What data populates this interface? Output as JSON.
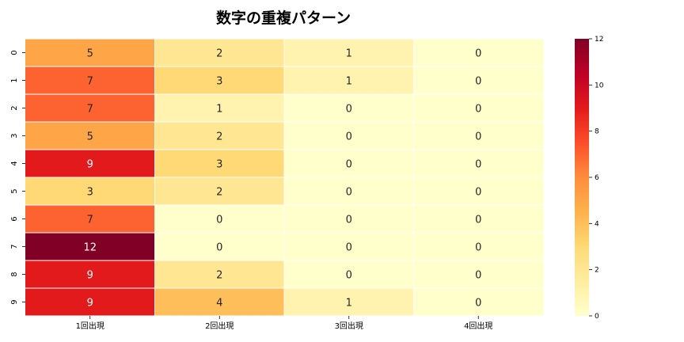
{
  "chart_data": {
    "type": "heatmap",
    "title": "数字の重複パターン",
    "xlabel": "",
    "ylabel": "",
    "x_categories": [
      "1回出現",
      "2回出現",
      "3回出現",
      "4回出現"
    ],
    "y_categories": [
      "0",
      "1",
      "2",
      "3",
      "4",
      "5",
      "6",
      "7",
      "8",
      "9"
    ],
    "values": [
      [
        5,
        2,
        1,
        0
      ],
      [
        7,
        3,
        1,
        0
      ],
      [
        7,
        1,
        0,
        0
      ],
      [
        5,
        2,
        0,
        0
      ],
      [
        9,
        3,
        0,
        0
      ],
      [
        3,
        2,
        0,
        0
      ],
      [
        7,
        0,
        0,
        0
      ],
      [
        12,
        0,
        0,
        0
      ],
      [
        9,
        2,
        0,
        0
      ],
      [
        9,
        4,
        1,
        0
      ]
    ],
    "colormap": "YlOrRd",
    "value_range": [
      0,
      12
    ],
    "colorbar_ticks": [
      "0",
      "2",
      "4",
      "6",
      "8",
      "10",
      "12"
    ],
    "annotations": true,
    "grid": true,
    "colorbar_placement": "right"
  }
}
